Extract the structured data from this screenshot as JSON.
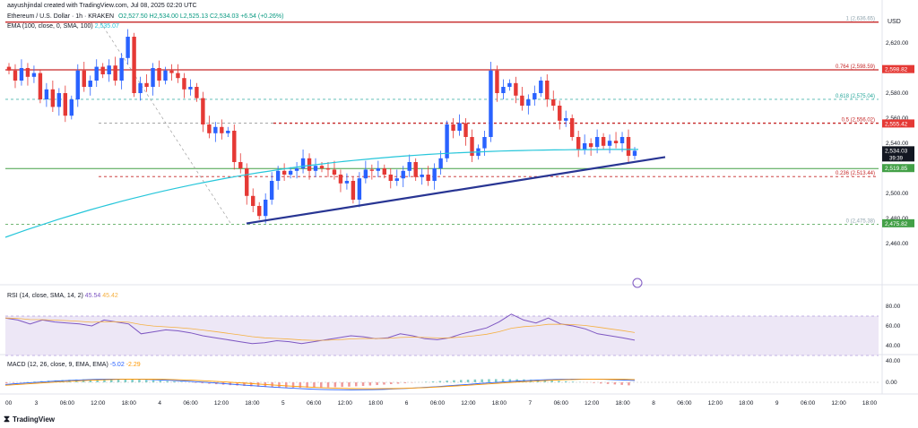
{
  "header": {
    "attribution": "aayushjindal created with TradingView.com, Jul 08, 2025 02:20 UTC",
    "symbol": "Ethereum / U.S. Dollar · 1h · KRAKEN",
    "ohlc": "O2,527.50 H2,534.00 L2,525.13 C2,534.03 +6.54 (+0.26%)",
    "ema_legend": "EMA (100, close, 0, SMA, 100)",
    "ema_value": "2,535.07"
  },
  "currency": "USD",
  "price_axis": {
    "ticks": [
      "2,620.00",
      "2,600.00",
      "2,580.00",
      "2,560.00",
      "2,540.00",
      "2,500.00",
      "2,480.00",
      "2,460.00"
    ],
    "badges": [
      {
        "label": "2,598.82",
        "color": "#e53935"
      },
      {
        "label": "2,555.42",
        "color": "#e53935"
      },
      {
        "label": "2,534.03",
        "sub": "39:39",
        "color": "#131722"
      },
      {
        "label": "2,519.85",
        "color": "#43a047"
      },
      {
        "label": "2,475.82",
        "color": "#43a047"
      }
    ]
  },
  "fib_labels": [
    {
      "text": "1 (2,636.65)",
      "color": "#90a4ae"
    },
    {
      "text": "0.764 (2,598.59)",
      "color": "#c62828"
    },
    {
      "text": "0.618 (2,575.04)",
      "color": "#26a69a"
    },
    {
      "text": "0.5 (2,556.02)",
      "color": "#c62828"
    },
    {
      "text": "0.236 (2,513.44)",
      "color": "#c62828"
    },
    {
      "text": "0 (2,475.38)",
      "color": "#90a4ae"
    }
  ],
  "rsi": {
    "legend": "RSI (14, close, SMA, 14, 2)",
    "value1": "45.54",
    "value2": "45.42",
    "ticks": [
      "80.00",
      "60.00",
      "40.00"
    ]
  },
  "macd": {
    "legend": "MACD (12, 26, close, 9, EMA, EMA)",
    "value1": "-5.02",
    "value2": "-2.29",
    "ticks": [
      "40.00",
      "0.00"
    ]
  },
  "time_axis": [
    "00",
    "3",
    "06:00",
    "12:00",
    "18:00",
    "4",
    "06:00",
    "12:00",
    "18:00",
    "5",
    "06:00",
    "12:00",
    "18:00",
    "6",
    "06:00",
    "12:00",
    "18:00",
    "7",
    "06:00",
    "12:00",
    "18:00",
    "8",
    "06:00",
    "12:00",
    "18:00",
    "9",
    "06:00",
    "12:00",
    "18:00"
  ],
  "footer": {
    "brand": "TradingView"
  },
  "chart_data": {
    "type": "candlestick",
    "symbol": "ETH/USD",
    "interval": "1h",
    "fibonacci": [
      {
        "level": 1,
        "price": 2636.65
      },
      {
        "level": 0.764,
        "price": 2598.59
      },
      {
        "level": 0.618,
        "price": 2575.04
      },
      {
        "level": 0.5,
        "price": 2556.02
      },
      {
        "level": 0.236,
        "price": 2513.44
      },
      {
        "level": 0,
        "price": 2475.38
      }
    ],
    "closes": [
      2598,
      2590,
      2600,
      2593,
      2596,
      2575,
      2583,
      2569,
      2580,
      2562,
      2575,
      2598,
      2585,
      2590,
      2601,
      2595,
      2602,
      2590,
      2608,
      2625,
      2580,
      2588,
      2585,
      2600,
      2590,
      2598,
      2596,
      2592,
      2583,
      2585,
      2576,
      2555,
      2548,
      2553,
      2548,
      2550,
      2525,
      2520,
      2498,
      2490,
      2482,
      2495,
      2510,
      2518,
      2515,
      2518,
      2520,
      2528,
      2518,
      2522,
      2520,
      2519,
      2515,
      2508,
      2510,
      2495,
      2512,
      2519,
      2518,
      2520,
      2515,
      2510,
      2512,
      2518,
      2525,
      2513,
      2515,
      2510,
      2520,
      2528,
      2555,
      2550,
      2556,
      2545,
      2530,
      2536,
      2545,
      2598,
      2580,
      2585,
      2588,
      2578,
      2570,
      2575,
      2580,
      2590,
      2575,
      2570,
      2558,
      2560,
      2545,
      2535,
      2540,
      2537,
      2545,
      2538,
      2542,
      2540,
      2545,
      2530,
      2534.03
    ],
    "ema100_start": 2465,
    "ema100_end": 2535.07,
    "trendline": {
      "from": 2476,
      "to": 2529
    },
    "rsi_series": [
      68,
      66,
      62,
      66,
      64,
      63,
      62,
      60,
      66,
      64,
      62,
      52,
      54,
      56,
      55,
      53,
      50,
      48,
      46,
      44,
      42,
      43,
      45,
      44,
      42,
      44,
      46,
      48,
      50,
      49,
      47,
      48,
      52,
      50,
      47,
      46,
      48,
      52,
      55,
      58,
      64,
      72,
      66,
      63,
      68,
      62,
      60,
      57,
      52,
      50,
      48,
      45.54
    ]
  }
}
